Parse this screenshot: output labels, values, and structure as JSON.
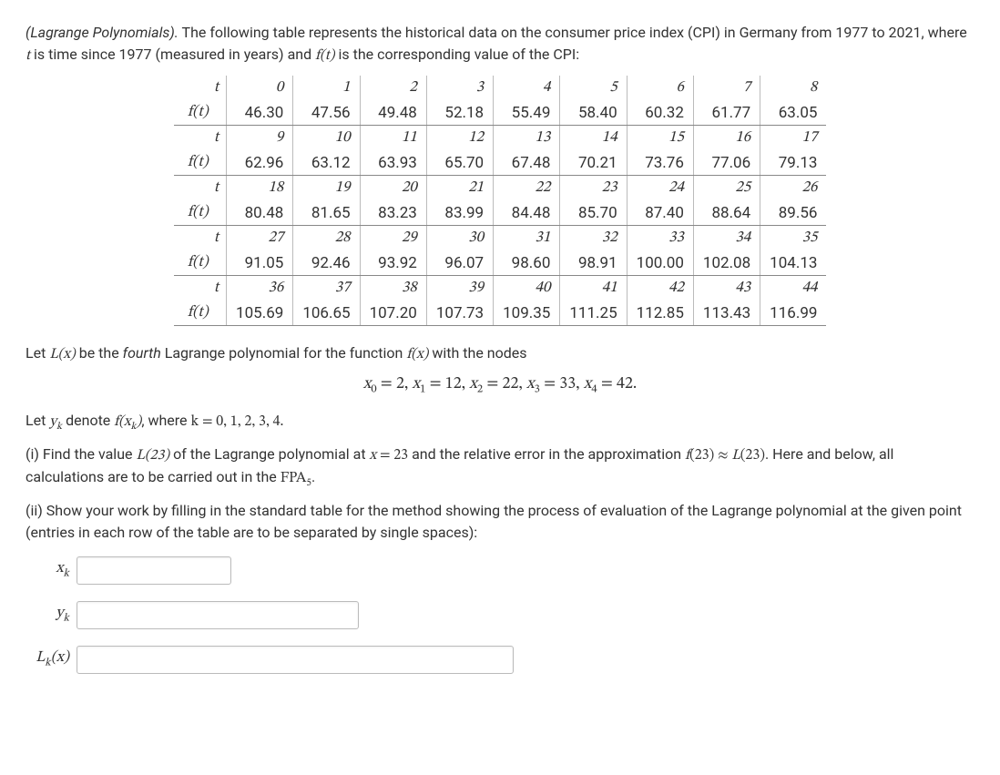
{
  "intro": {
    "prefix_italic": "(Lagrange Polynomials).",
    "text": " The following table represents the historical data on the consumer price index (CPI) in Germany from 1977 to 2021, where ",
    "t_var": "t",
    "text2": " is time since 1977 (measured in years) and ",
    "ft_var": "f(t)",
    "text3": " is the corresponding value of the CPI:"
  },
  "table": {
    "row_label_t": "t",
    "row_label_ft": "f(t)",
    "ncols": 9,
    "blocks": [
      {
        "t": [
          "0",
          "1",
          "2",
          "3",
          "4",
          "5",
          "6",
          "7",
          "8"
        ],
        "ft": [
          "46.30",
          "47.56",
          "49.48",
          "52.18",
          "55.49",
          "58.40",
          "60.32",
          "61.77",
          "63.05"
        ]
      },
      {
        "t": [
          "9",
          "10",
          "11",
          "12",
          "13",
          "14",
          "15",
          "16",
          "17"
        ],
        "ft": [
          "62.96",
          "63.12",
          "63.93",
          "65.70",
          "67.48",
          "70.21",
          "73.76",
          "77.06",
          "79.13"
        ]
      },
      {
        "t": [
          "18",
          "19",
          "20",
          "21",
          "22",
          "23",
          "24",
          "25",
          "26"
        ],
        "ft": [
          "80.48",
          "81.65",
          "83.23",
          "83.99",
          "84.48",
          "85.70",
          "87.40",
          "88.64",
          "89.56"
        ]
      },
      {
        "t": [
          "27",
          "28",
          "29",
          "30",
          "31",
          "32",
          "33",
          "34",
          "35"
        ],
        "ft": [
          "91.05",
          "92.46",
          "93.92",
          "96.07",
          "98.60",
          "98.91",
          "100.00",
          "102.08",
          "104.13"
        ]
      },
      {
        "t": [
          "36",
          "37",
          "38",
          "39",
          "40",
          "41",
          "42",
          "43",
          "44"
        ],
        "ft": [
          "105.69",
          "106.65",
          "107.20",
          "107.73",
          "109.35",
          "111.25",
          "112.85",
          "113.43",
          "116.99"
        ]
      }
    ]
  },
  "p_let": {
    "text1": "Let ",
    "Lx": "L(x)",
    "text2": " be the ",
    "fourth": "fourth",
    "text3": " Lagrange polynomial for the function ",
    "fx": "f(x)",
    "text4": " with the nodes"
  },
  "nodes_eq": "x₀ = 2, x₁ = 12, x₂ = 22, x₃ = 33, x₄ = 42.",
  "p_yk": {
    "text1": "Let ",
    "yk": "yₖ",
    "text2": " denote ",
    "fxk": "f(xₖ)",
    "text3": ", where ",
    "k_eq": "k = 0, 1, 2, 3, 4."
  },
  "p_i": {
    "label": "(i) Find the value ",
    "L23": "L(23)",
    "text2": " of the Lagrange polynomial at ",
    "x_eq": "x = 23",
    "text3": " and the relative error in the approximation ",
    "approx": "f(23) ≈ L(23)",
    "text4": ". Here and below, all calculations are to be carried out in the ",
    "fpa": "FPA₅",
    "text5": "."
  },
  "p_ii": "(ii) Show your work by filling in the standard table for the method showing the process of evaluation of the Lagrange polynomial at the given point (entries in each row of the table are to be separated by single spaces):",
  "answer_labels": {
    "xk": "xₖ",
    "yk": "yₖ",
    "Lk": "Lₖ(x)"
  },
  "answer_values": {
    "xk": "",
    "yk": "",
    "Lk": ""
  },
  "style": {
    "text_color": "#333333",
    "border_color": "#bbbbbb",
    "hr_color": "#888888",
    "bg_color": "#ffffff",
    "body_fontsize": 16,
    "table_fontsize": 17,
    "eq_fontsize": 18
  }
}
